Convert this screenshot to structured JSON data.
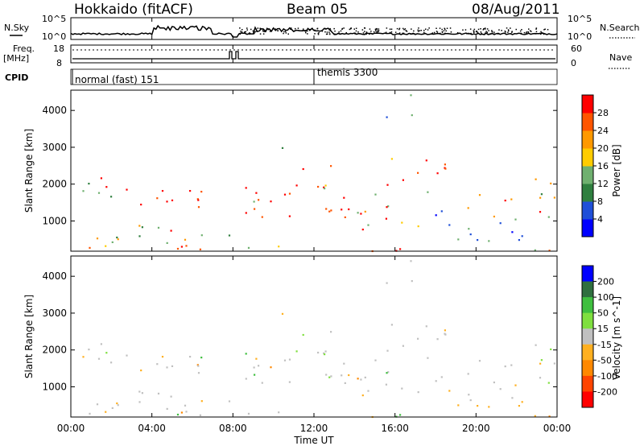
{
  "header": {
    "title": "Hokkaido (fitACF)",
    "beam": "Beam 05",
    "date": "08/Aug/2011"
  },
  "nsky_panel": {
    "left_label": "N.Sky",
    "right_label": "N.Search",
    "left_ticks": [
      "10^5",
      "10^0"
    ],
    "right_ticks": [
      "10^5",
      "10^0"
    ]
  },
  "freq_panel": {
    "left_label_top": "Freq.",
    "left_label_bottom": "[MHz]",
    "left_ticks": [
      "18",
      "8"
    ],
    "right_ticks": [
      "60",
      "0"
    ],
    "right_label": "Nave"
  },
  "cpid_panel": {
    "label": "CPID",
    "modes": [
      {
        "name": "normal (fast) 151",
        "start_hour": 0
      },
      {
        "name": "themis 3300",
        "start_hour": 12.0
      }
    ]
  },
  "chart_data": [
    {
      "type": "heatmap",
      "name": "power",
      "ylabel": "Slant Range [km]",
      "xlabel": "",
      "xlim_hours": [
        0,
        24
      ],
      "ylim_km": [
        180,
        4550
      ],
      "y_ticks": [
        1000,
        2000,
        3000,
        4000
      ],
      "colorbar": {
        "label": "Power [dB]",
        "range": [
          0,
          32
        ],
        "ticks": [
          4,
          8,
          12,
          16,
          20,
          24,
          28
        ],
        "colors": [
          "#0000ff",
          "#1f4fd8",
          "#2f7f3f",
          "#6fb06f",
          "#ffcc00",
          "#ff9900",
          "#ff5500",
          "#ff0000"
        ]
      }
    },
    {
      "type": "heatmap",
      "name": "velocity",
      "ylabel": "Slant Range [km]",
      "xlabel": "Time UT",
      "xlim_hours": [
        0,
        24
      ],
      "ylim_km": [
        180,
        4550
      ],
      "y_ticks": [
        1000,
        2000,
        3000,
        4000
      ],
      "colorbar": {
        "label": "Velocity [m s^-1]",
        "ticks": [
          "200",
          "100",
          "50",
          "15",
          "-15",
          "-50",
          "-100",
          "-200"
        ],
        "colors": [
          "#0000ff",
          "#2f6f3f",
          "#3fbf3f",
          "#7fdf3f",
          "#c0c0c0",
          "#ffb020",
          "#ff8800",
          "#ff4400",
          "#ff0000"
        ]
      },
      "x_ticks": [
        "00:00",
        "04:00",
        "08:00",
        "12:00",
        "16:00",
        "20:00",
        "00:00"
      ]
    }
  ]
}
